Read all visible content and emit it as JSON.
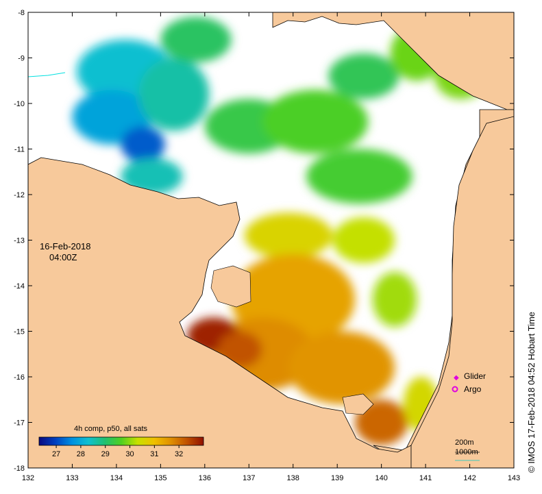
{
  "map": {
    "extent": {
      "lon_min": 132,
      "lon_max": 143,
      "lat_min": -18,
      "lat_max": -8
    },
    "lon_ticks": [
      "132",
      "133",
      "134",
      "135",
      "136",
      "137",
      "138",
      "139",
      "140",
      "141",
      "142",
      "143"
    ],
    "lat_ticks": [
      "-8",
      "-9",
      "-10",
      "-11",
      "-12",
      "-13",
      "-14",
      "-15",
      "-16",
      "-17",
      "-18"
    ],
    "colors": {
      "land": "#f7c99b",
      "ocean_nodata": "#ffffff",
      "coast": "#000000"
    }
  },
  "timestamp": {
    "date": "16-Feb-2018",
    "time": "04:00Z"
  },
  "credit": "© IMOS 17-Feb-2018 04:52 Hobart Time",
  "legend": {
    "glider_label": "Glider",
    "argo_label": "Argo",
    "marker_color": "#e000e0"
  },
  "depth_legend": {
    "contour_200": "200m",
    "contour_1000": "1000m"
  },
  "colorbar": {
    "title": "4h comp, p50, all sats",
    "ticks": [
      "27",
      "28",
      "29",
      "30",
      "31",
      "32"
    ],
    "min": 26.3,
    "max": 33.0,
    "stops": [
      "#0a0a80",
      "#0040c0",
      "#0090e0",
      "#10c0d0",
      "#20c070",
      "#50d020",
      "#c8e000",
      "#f0c000",
      "#e09000",
      "#c05000",
      "#901000"
    ]
  },
  "sst_patches": [
    {
      "lon": 134.2,
      "lat": -9.3,
      "rx": 1.1,
      "ry": 0.7,
      "value": 28.3
    },
    {
      "lon": 133.9,
      "lat": -10.3,
      "rx": 0.9,
      "ry": 0.6,
      "value": 27.9
    },
    {
      "lon": 134.6,
      "lat": -10.9,
      "rx": 0.5,
      "ry": 0.4,
      "value": 27.2
    },
    {
      "lon": 135.3,
      "lat": -9.8,
      "rx": 0.8,
      "ry": 0.8,
      "value": 28.6
    },
    {
      "lon": 135.8,
      "lat": -8.6,
      "rx": 0.8,
      "ry": 0.5,
      "value": 29.1
    },
    {
      "lon": 134.8,
      "lat": -11.6,
      "rx": 0.7,
      "ry": 0.4,
      "value": 28.5
    },
    {
      "lon": 137.0,
      "lat": -10.5,
      "rx": 1.0,
      "ry": 0.6,
      "value": 29.3
    },
    {
      "lon": 138.5,
      "lat": -10.4,
      "rx": 1.2,
      "ry": 0.7,
      "value": 29.6
    },
    {
      "lon": 139.6,
      "lat": -9.4,
      "rx": 0.8,
      "ry": 0.5,
      "value": 29.2
    },
    {
      "lon": 140.8,
      "lat": -8.9,
      "rx": 0.6,
      "ry": 0.6,
      "value": 29.8
    },
    {
      "lon": 141.8,
      "lat": -9.4,
      "rx": 0.6,
      "ry": 0.5,
      "value": 29.9
    },
    {
      "lon": 139.5,
      "lat": -11.6,
      "rx": 1.2,
      "ry": 0.6,
      "value": 29.5
    },
    {
      "lon": 137.9,
      "lat": -12.9,
      "rx": 1.0,
      "ry": 0.5,
      "value": 30.6
    },
    {
      "lon": 139.6,
      "lat": -13.0,
      "rx": 0.7,
      "ry": 0.5,
      "value": 30.3
    },
    {
      "lon": 138.0,
      "lat": -14.3,
      "rx": 1.4,
      "ry": 1.0,
      "value": 31.4
    },
    {
      "lon": 137.3,
      "lat": -15.5,
      "rx": 1.2,
      "ry": 0.8,
      "value": 31.7
    },
    {
      "lon": 139.1,
      "lat": -15.8,
      "rx": 1.2,
      "ry": 0.8,
      "value": 31.6
    },
    {
      "lon": 140.0,
      "lat": -17.0,
      "rx": 0.6,
      "ry": 0.5,
      "value": 32.1
    },
    {
      "lon": 136.2,
      "lat": -15.1,
      "rx": 0.6,
      "ry": 0.4,
      "value": 32.8
    },
    {
      "lon": 136.8,
      "lat": -15.4,
      "rx": 0.5,
      "ry": 0.4,
      "value": 32.3
    },
    {
      "lon": 140.9,
      "lat": -16.6,
      "rx": 0.4,
      "ry": 0.6,
      "value": 30.5
    },
    {
      "lon": 140.3,
      "lat": -14.3,
      "rx": 0.5,
      "ry": 0.6,
      "value": 30.1
    }
  ]
}
